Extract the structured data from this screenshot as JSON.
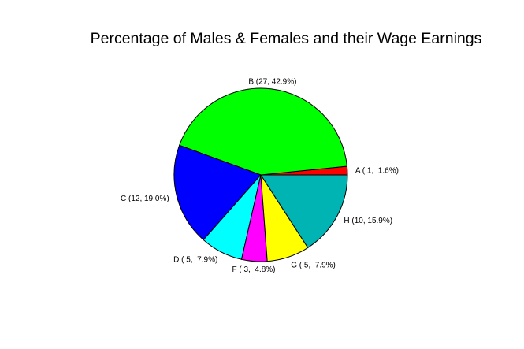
{
  "chart_data": {
    "type": "pie",
    "title": "Percentage of Males & Females and their Wage Earnings",
    "start_angle_deg": 0,
    "direction": "counterclockwise",
    "slices": [
      {
        "category": "A",
        "value": 1,
        "label": "A ( 1,  1.6%)",
        "color": "#ff0000"
      },
      {
        "category": "B",
        "value": 27,
        "label": "B (27, 42.9%)",
        "color": "#00ff00"
      },
      {
        "category": "C",
        "value": 12,
        "label": "C (12, 19.0%)",
        "color": "#0000ff"
      },
      {
        "category": "D",
        "value": 5,
        "label": "D ( 5,  7.9%)",
        "color": "#00ffff"
      },
      {
        "category": "F",
        "value": 3,
        "label": "F ( 3,  4.8%)",
        "color": "#ff00ff"
      },
      {
        "category": "G",
        "value": 5,
        "label": "G ( 5,  7.9%)",
        "color": "#ffff00"
      },
      {
        "category": "H",
        "value": 10,
        "label": "H (10, 15.9%)",
        "color": "#00b4b4"
      }
    ]
  }
}
